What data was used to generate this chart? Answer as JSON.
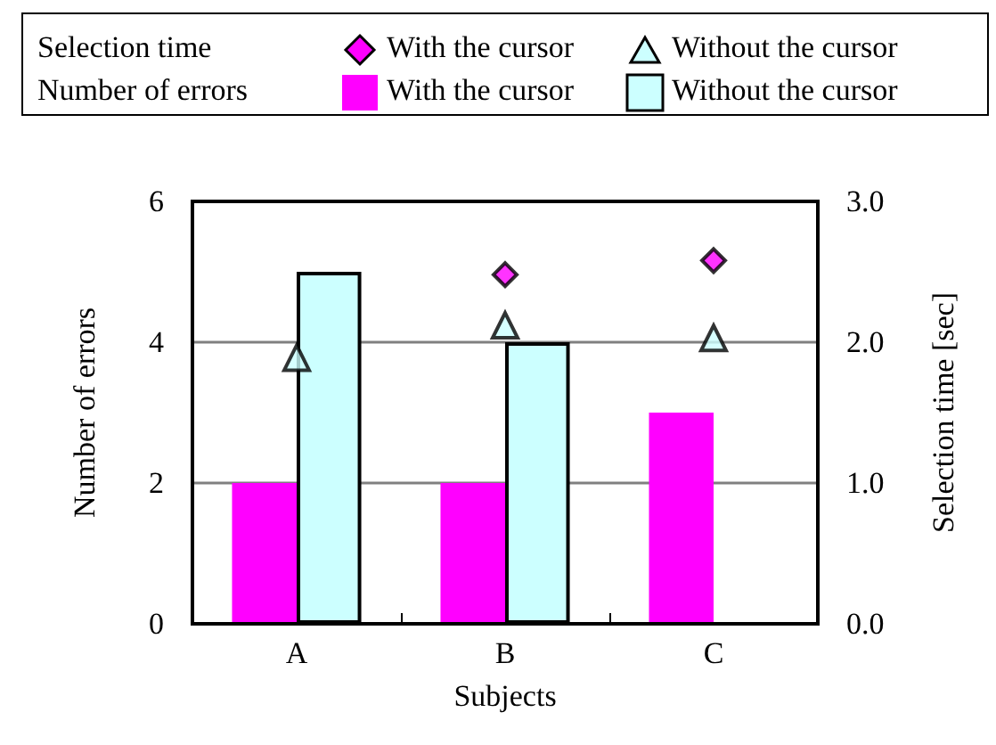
{
  "chart_data": {
    "type": "bar",
    "xlabel": "Subjects",
    "ylabel": "Number of errors",
    "y2label": "Selection time [sec]",
    "categories": [
      "A",
      "B",
      "C"
    ],
    "series": [
      {
        "name": "With the cursor",
        "type": "scatter",
        "axis": "y2",
        "marker": "diamond",
        "color": "#ff00ff",
        "values": [
          null,
          2.48,
          2.58
        ]
      },
      {
        "name": "Without the cursor",
        "type": "scatter",
        "axis": "y2",
        "marker": "triangle",
        "color": "#ccffff",
        "values": [
          1.89,
          2.12,
          2.03
        ]
      },
      {
        "name": "With the cursor",
        "color": "#ff00ff",
        "values": [
          2,
          2,
          3
        ]
      },
      {
        "name": "Without the cursor",
        "color": "#ccffff",
        "values": [
          5,
          4,
          0
        ]
      }
    ],
    "annotations": [
      "Selection time",
      "Number of errors"
    ],
    "ylim": [
      0,
      6
    ],
    "yticks": [
      0,
      2,
      4,
      6
    ],
    "y2lim": [
      0,
      3
    ],
    "y2ticks": [
      {
        "value": 0,
        "label": "0.0"
      },
      {
        "value": 1,
        "label": "1.0"
      },
      {
        "value": 2,
        "label": "2.0"
      },
      {
        "value": 3,
        "label": "3.0"
      }
    ],
    "grid": "y",
    "legend": "top"
  }
}
